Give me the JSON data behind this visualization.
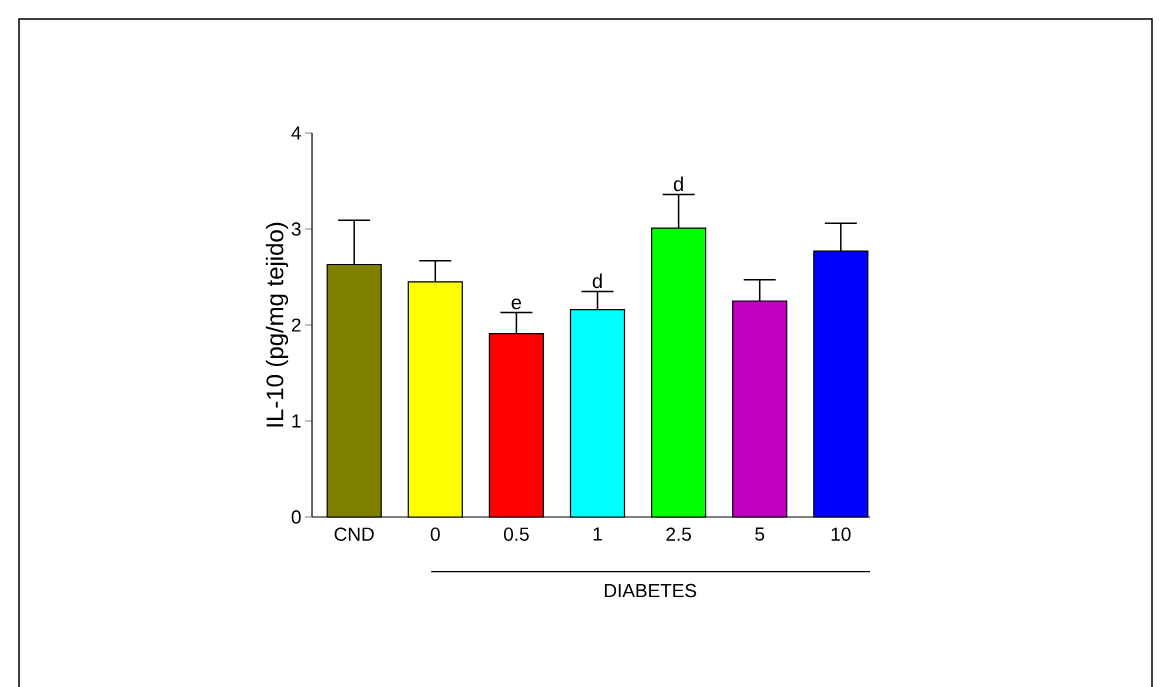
{
  "chart_data": {
    "type": "bar",
    "ylabel": "IL-10 (pg/mg tejido)",
    "categories": [
      "CND",
      "0",
      "0.5",
      "1",
      "2.5",
      "5",
      "10"
    ],
    "values": [
      2.63,
      2.45,
      1.91,
      2.16,
      3.01,
      2.25,
      2.77
    ],
    "colors": [
      "#808000",
      "#ffff00",
      "#ff0000",
      "#00ffff",
      "#00ff00",
      "#c000c0",
      "#0000ff"
    ],
    "errors": [
      [
        2.63,
        3.09
      ],
      [
        2.45,
        2.67
      ],
      [
        1.91,
        2.13
      ],
      [
        2.16,
        2.35
      ],
      [
        3.01,
        3.36
      ],
      [
        2.25,
        2.47
      ],
      [
        2.77,
        3.06
      ]
    ],
    "ylim": [
      0,
      4
    ],
    "yticks": [
      0,
      1,
      2,
      3,
      4
    ],
    "annotations": [
      {
        "text": "e",
        "x": "0.5",
        "y": 2.13
      },
      {
        "text": "d",
        "x": "1",
        "y": 2.35
      },
      {
        "text": "d",
        "x": "2.5",
        "y": 3.36
      },
      "DIABETES"
    ]
  }
}
